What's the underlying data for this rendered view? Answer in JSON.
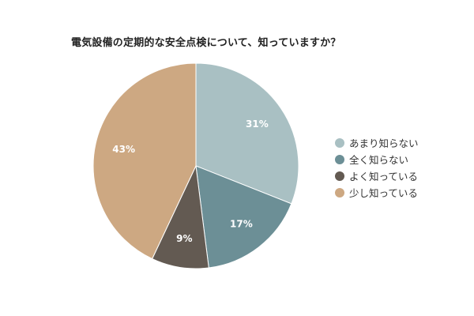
{
  "title": "電気設備の定期的な安全点検について、知っていますか？",
  "chart_data": {
    "type": "pie",
    "categories": [
      "あまり知らない",
      "全く知らない",
      "よく知っている",
      "少し知っている"
    ],
    "values": [
      31,
      17,
      9,
      43
    ],
    "labels": [
      "31%",
      "17%",
      "9%",
      "43%"
    ],
    "colors": [
      "#a9c0c3",
      "#6c8f96",
      "#635a52",
      "#cda882"
    ],
    "start_angle_deg": 0,
    "direction": "clockwise",
    "legend_position": "right"
  }
}
